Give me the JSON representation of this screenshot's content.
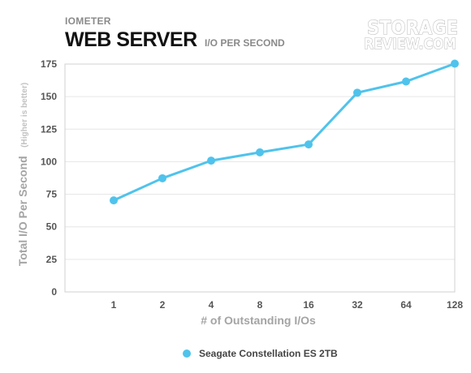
{
  "header": {
    "supertitle": "IOMETER",
    "title": "WEB SERVER",
    "subtitle": "I/O PER SECOND"
  },
  "logo": {
    "line1": "STORAGE",
    "line2": "REVIEW.COM"
  },
  "legend": {
    "label": "Seagate Constellation ES 2TB"
  },
  "chart_data": {
    "type": "line",
    "title": "WEB SERVER",
    "subtitle": "I/O PER SECOND",
    "xlabel": "# of Outstanding I/Os",
    "ylabel": "Total I/O Per Second",
    "ylabel_note": "(Higher is better)",
    "categories": [
      "1",
      "2",
      "4",
      "8",
      "16",
      "32",
      "64",
      "128"
    ],
    "series": [
      {
        "name": "Seagate Constellation ES 2TB",
        "color": "#4fc3ec",
        "values": [
          70.3,
          87.3,
          100.8,
          107.2,
          113.3,
          153.0,
          161.6,
          175.3
        ]
      }
    ],
    "ylim": [
      0,
      175
    ],
    "yticks": [
      0,
      25,
      50,
      75,
      100,
      125,
      150,
      175
    ],
    "grid": true,
    "legend_position": "bottom"
  }
}
